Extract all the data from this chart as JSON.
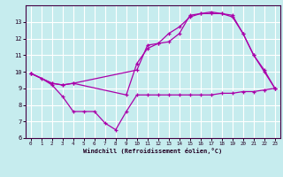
{
  "xlabel": "Windchill (Refroidissement éolien,°C)",
  "x_ticks": [
    0,
    1,
    2,
    3,
    4,
    5,
    6,
    7,
    8,
    9,
    10,
    11,
    12,
    13,
    14,
    15,
    16,
    17,
    18,
    19,
    20,
    21,
    22,
    23
  ],
  "ylim": [
    6,
    14
  ],
  "xlim": [
    -0.5,
    23.5
  ],
  "yticks": [
    6,
    7,
    8,
    9,
    10,
    11,
    12,
    13
  ],
  "bg_color": "#c6ecee",
  "grid_color": "#ffffff",
  "line_color": "#aa00aa",
  "line1_x": [
    0,
    1,
    2,
    3,
    4,
    5,
    6,
    7,
    8,
    9,
    10,
    11,
    12,
    13,
    14,
    15,
    16,
    17,
    18,
    19,
    20,
    21,
    22,
    23
  ],
  "line1_y": [
    9.9,
    9.6,
    9.2,
    8.5,
    7.6,
    7.6,
    7.6,
    6.9,
    6.5,
    7.6,
    8.6,
    8.6,
    8.6,
    8.6,
    8.6,
    8.6,
    8.6,
    8.6,
    8.7,
    8.7,
    8.8,
    8.8,
    8.9,
    9.0
  ],
  "line2_x": [
    0,
    2,
    3,
    4,
    10,
    11,
    12,
    13,
    14,
    15,
    16,
    17,
    18,
    19,
    20,
    21,
    22,
    23
  ],
  "line2_y": [
    9.9,
    9.3,
    9.2,
    9.3,
    10.1,
    11.6,
    11.7,
    11.8,
    12.3,
    13.4,
    13.5,
    13.6,
    13.5,
    13.4,
    12.3,
    11.0,
    10.1,
    9.0
  ],
  "line3_x": [
    0,
    2,
    3,
    4,
    9,
    10,
    11,
    12,
    13,
    14,
    15,
    16,
    17,
    18,
    19,
    20,
    21,
    22,
    23
  ],
  "line3_y": [
    9.9,
    9.3,
    9.2,
    9.3,
    8.6,
    10.5,
    11.4,
    11.7,
    12.3,
    12.7,
    13.3,
    13.5,
    13.5,
    13.5,
    13.3,
    12.3,
    11.0,
    10.0,
    9.0
  ]
}
